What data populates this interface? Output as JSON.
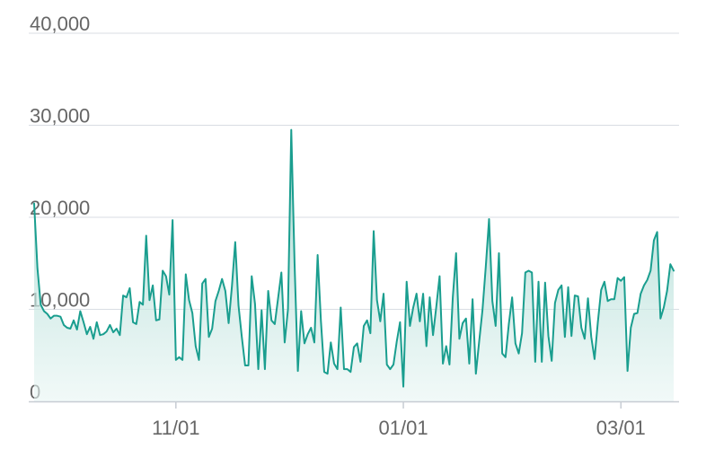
{
  "chart_data": {
    "type": "area",
    "title": "",
    "xlabel": "",
    "ylabel": "",
    "ylim": [
      0,
      40000
    ],
    "grid": true,
    "y_ticks": [
      0,
      10000,
      20000,
      30000,
      40000
    ],
    "y_tick_labels": [
      "0",
      "10,000",
      "20,000",
      "30,000",
      "40,000"
    ],
    "x_ticks": [
      {
        "label": "11/01",
        "index": 43
      },
      {
        "label": "01/01",
        "index": 112
      },
      {
        "label": "03/01",
        "index": 178
      }
    ],
    "colors": {
      "line": "#1a9e8f",
      "fill_top": "#8fcfc5",
      "fill_bottom": "#e8f5f3",
      "grid": "#d9dde3",
      "axis": "#c7ccd3",
      "tick_text": "#666666"
    },
    "series": [
      {
        "values": [
          21500,
          14500,
          10500,
          9800,
          9500,
          9000,
          9300,
          9300,
          9200,
          8300,
          8000,
          7900,
          8800,
          7800,
          9800,
          8600,
          7300,
          8100,
          6800,
          8600,
          7200,
          7300,
          7600,
          8300,
          7500,
          7900,
          7200,
          11500,
          11300,
          12300,
          8600,
          8400,
          10800,
          10500,
          18000,
          11000,
          12600,
          8800,
          8900,
          14200,
          13600,
          11600,
          19700,
          4500,
          4800,
          4500,
          13800,
          11000,
          9600,
          6000,
          4500,
          12800,
          13300,
          7000,
          7900,
          10900,
          12000,
          13300,
          12000,
          8500,
          12500,
          17300,
          10400,
          7000,
          3900,
          3900,
          13600,
          10600,
          3500,
          9900,
          3500,
          12000,
          8800,
          8400,
          11200,
          14000,
          6400,
          10000,
          29500,
          15000,
          3300,
          9800,
          6300,
          7300,
          8000,
          6400,
          15900,
          8700,
          3200,
          3000,
          6400,
          4100,
          3500,
          10200,
          3500,
          3500,
          3200,
          5900,
          6300,
          4300,
          8200,
          8800,
          7400,
          18500,
          11000,
          8700,
          11700,
          4000,
          3500,
          4000,
          6500,
          8600,
          1600,
          13000,
          8200,
          10200,
          11700,
          8700,
          11700,
          6000,
          11300,
          7200,
          10300,
          13600,
          4100,
          6000,
          4000,
          11300,
          16100,
          6800,
          8500,
          9000,
          4100,
          11100,
          3000,
          6500,
          9900,
          14600,
          19800,
          10900,
          8200,
          16100,
          5200,
          4800,
          8400,
          11300,
          6300,
          5200,
          7400,
          14000,
          14200,
          14000,
          4300,
          13000,
          4300,
          12900,
          7100,
          4400,
          10700,
          12100,
          12600,
          7000,
          12400,
          7100,
          11500,
          11400,
          8000,
          6800,
          11200,
          7000,
          4600,
          8600,
          12100,
          13000,
          10900,
          11100,
          11100,
          13400,
          13100,
          13500,
          3300,
          8000,
          9500,
          9600,
          11700,
          12600,
          13200,
          14200,
          17500,
          18400,
          9000,
          10200,
          12000,
          14900,
          14200
        ]
      }
    ]
  }
}
